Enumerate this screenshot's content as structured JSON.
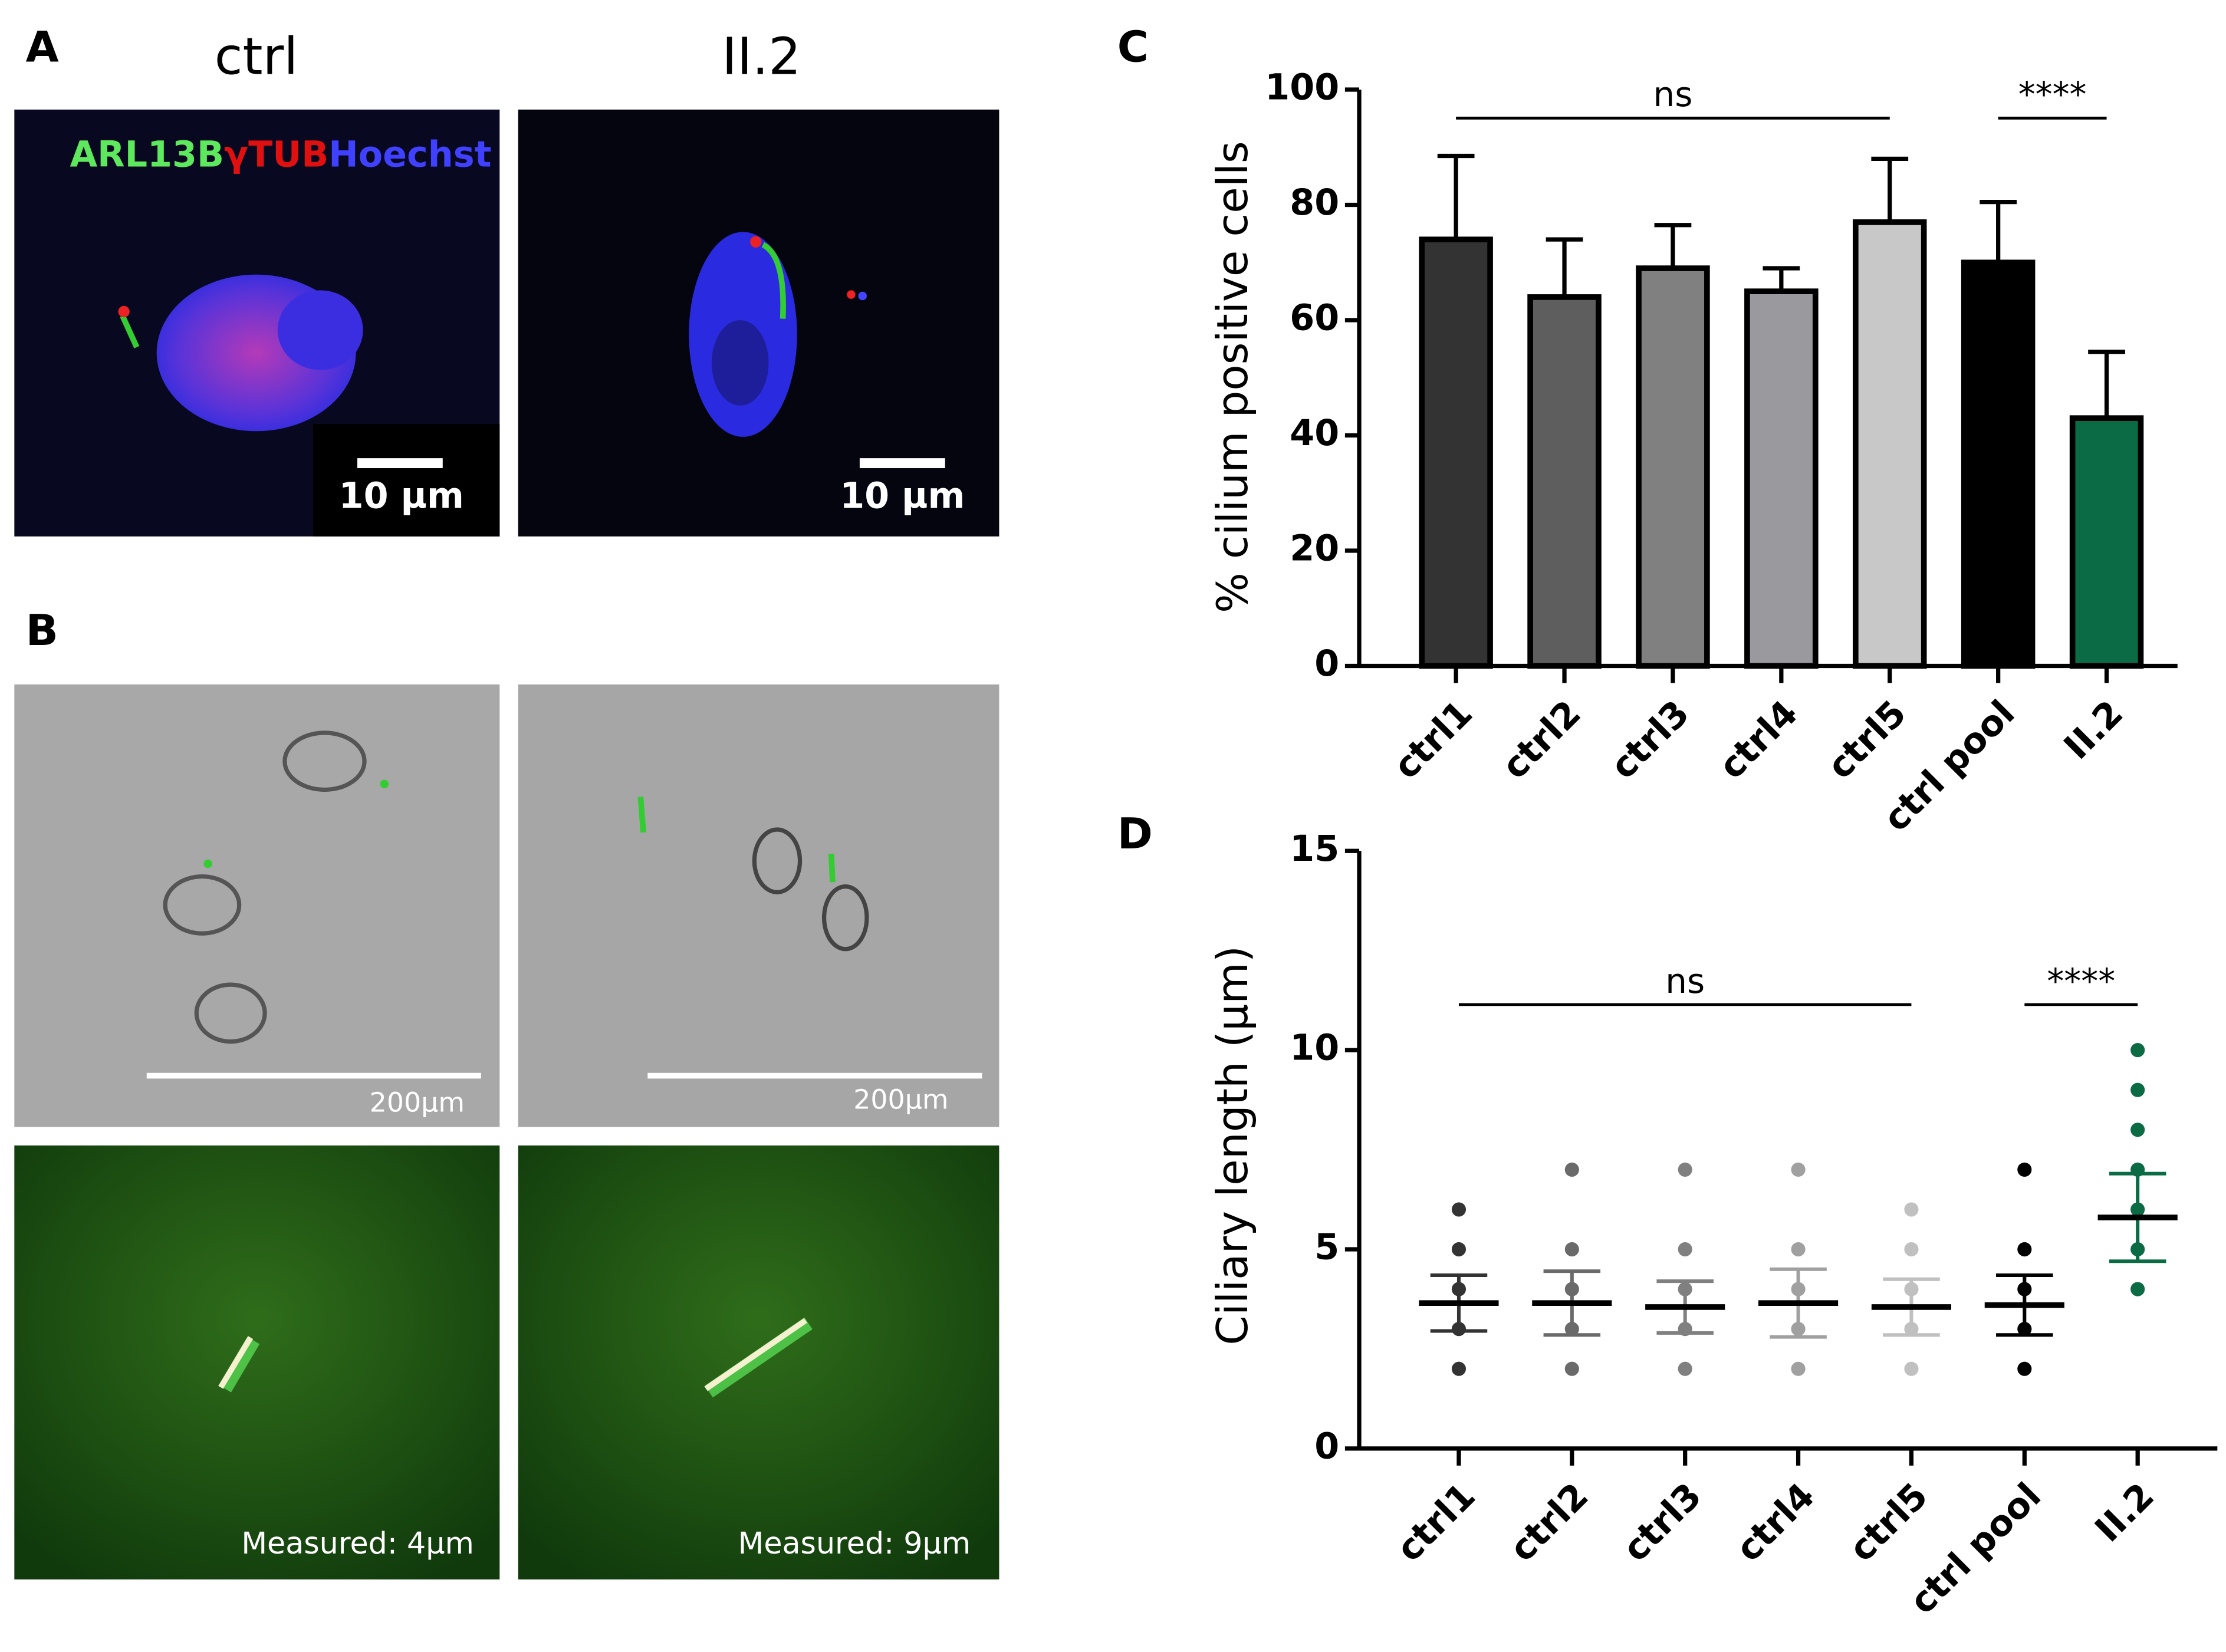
{
  "panels": {
    "A": {
      "label": "A",
      "columns": [
        "ctrl",
        "II.2"
      ],
      "stain": [
        "ARL13B",
        "γTUB",
        "Hoechst"
      ],
      "scale_bars": [
        "10 µm",
        "10 µm"
      ]
    },
    "B": {
      "label": "B",
      "scale_bars": [
        "200µm",
        "200µm"
      ],
      "measurements": [
        "Measured: 4µm",
        "Measured: 9µm"
      ]
    }
  },
  "chart_data": [
    {
      "type": "bar",
      "label": "C",
      "y_label": "% cilium positive cells",
      "categories": [
        "ctrl1",
        "ctrl2",
        "ctrl3",
        "ctrl4",
        "ctrl5",
        "ctrl pool",
        "II.2"
      ],
      "values": [
        74,
        64,
        69,
        65,
        77,
        70,
        43
      ],
      "errors": [
        14.5,
        10,
        7.5,
        4,
        11,
        10.5,
        11.5
      ],
      "colors": [
        "#333333",
        "#5e5e5e",
        "#808080",
        "#9a9a9e",
        "#c8c8c8",
        "#000000",
        "#0b6b45"
      ],
      "ylim": [
        0,
        100
      ],
      "yticks": [
        0,
        20,
        40,
        60,
        80,
        100
      ],
      "annotations": [
        {
          "text": "ns",
          "from": "ctrl1",
          "to": "ctrl5"
        },
        {
          "text": "****",
          "from": "ctrl pool",
          "to": "II.2"
        }
      ]
    },
    {
      "type": "dot",
      "label": "D",
      "y_label": "Ciliary length (µm)",
      "categories": [
        "ctrl1",
        "ctrl2",
        "ctrl3",
        "ctrl4",
        "ctrl5",
        "ctrl pool",
        "II.2"
      ],
      "means": [
        3.65,
        3.65,
        3.55,
        3.65,
        3.55,
        3.6,
        5.8
      ],
      "sd": [
        0.7,
        0.8,
        0.65,
        0.85,
        0.7,
        0.75,
        1.1
      ],
      "points": [
        [
          2,
          3,
          4,
          5,
          6
        ],
        [
          2,
          3,
          4,
          5,
          7
        ],
        [
          2,
          3,
          4,
          5,
          7
        ],
        [
          2,
          3,
          4,
          5,
          7
        ],
        [
          2,
          3,
          4,
          5,
          6
        ],
        [
          2,
          3,
          4,
          5,
          7
        ],
        [
          4,
          5,
          6,
          7,
          8,
          9,
          10
        ]
      ],
      "colors": [
        "#333333",
        "#6a6a6a",
        "#808080",
        "#a0a0a0",
        "#c0c0c0",
        "#000000",
        "#0b6b45"
      ],
      "ylim": [
        0,
        15
      ],
      "yticks": [
        0,
        5,
        10,
        15
      ],
      "annotations": [
        {
          "text": "ns",
          "from": "ctrl1",
          "to": "ctrl5"
        },
        {
          "text": "****",
          "from": "ctrl pool",
          "to": "II.2"
        }
      ]
    }
  ]
}
